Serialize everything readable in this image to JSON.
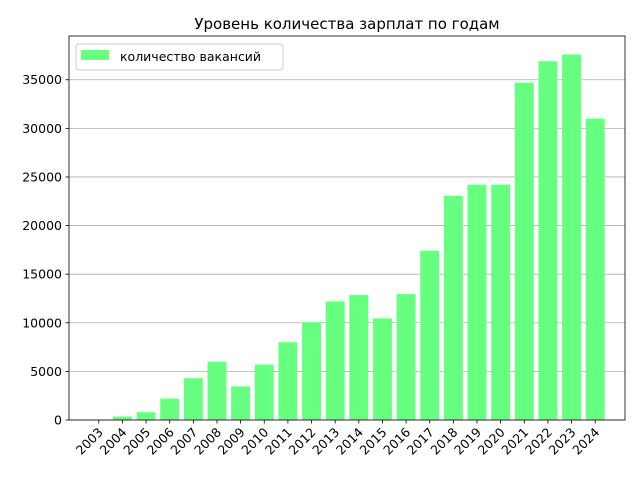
{
  "chart_data": {
    "type": "bar",
    "title": "Уровень количества зарплат по годам",
    "xlabel": "",
    "ylabel": "",
    "categories": [
      "2003",
      "2004",
      "2005",
      "2006",
      "2007",
      "2008",
      "2009",
      "2010",
      "2011",
      "2012",
      "2013",
      "2014",
      "2015",
      "2016",
      "2017",
      "2018",
      "2019",
      "2020",
      "2021",
      "2022",
      "2023",
      "2024"
    ],
    "series": [
      {
        "name": "количество вакансий",
        "color": "#66ff7f",
        "values": [
          0,
          350,
          800,
          2200,
          4300,
          6000,
          3450,
          5700,
          8000,
          10050,
          12200,
          12850,
          10450,
          12950,
          17400,
          23050,
          24200,
          24200,
          34700,
          36900,
          37600,
          31000
        ]
      }
    ],
    "ylim": [
      0,
      39500
    ],
    "yticks": [
      0,
      5000,
      10000,
      15000,
      20000,
      25000,
      30000,
      35000
    ],
    "ytick_labels": [
      "0",
      "5000",
      "10000",
      "15000",
      "20000",
      "25000",
      "30000",
      "35000"
    ],
    "grid": "y",
    "legend_position": "top-left",
    "xtick_rotation": "45deg"
  }
}
